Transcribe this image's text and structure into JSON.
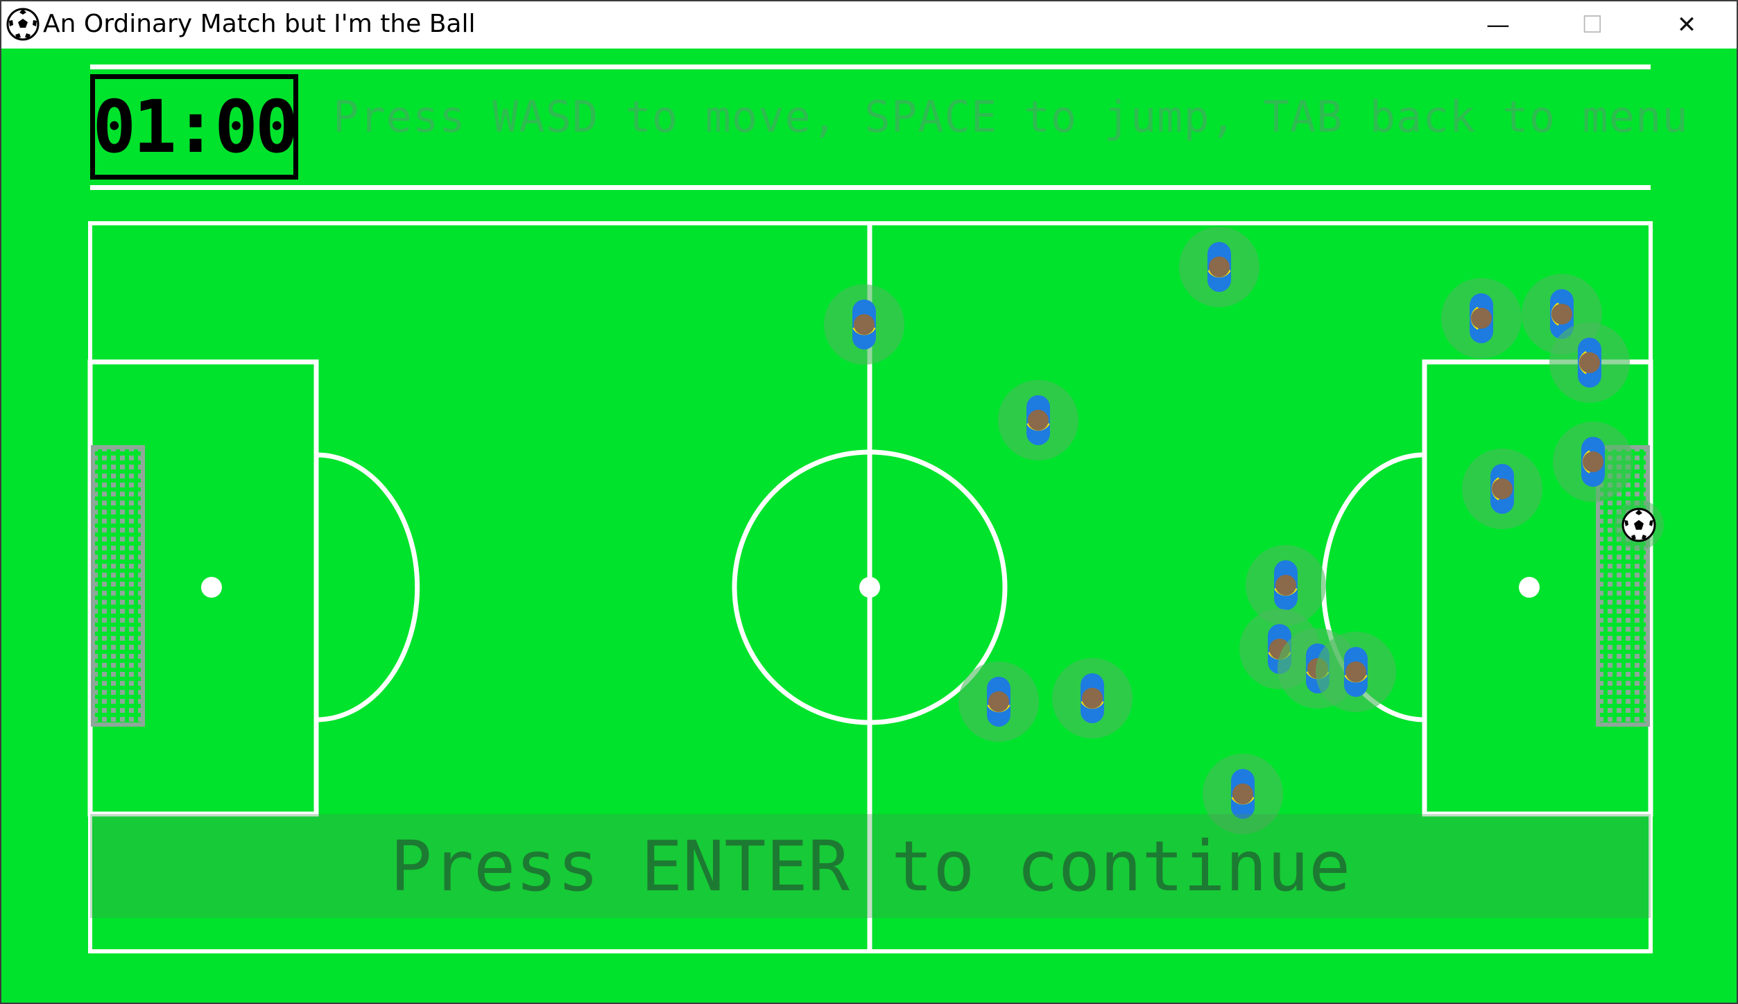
{
  "window": {
    "title": "An Ordinary Match but I'm the Ball",
    "app_icon": "soccer-ball-icon",
    "controls": {
      "minimize": "—",
      "maximize": "☐",
      "close": "✕"
    }
  },
  "hud": {
    "timer": "01:00",
    "instructions": "Press WASD to move, SPACE to jump, TAB back to menu"
  },
  "overlay": {
    "prompt": "Press ENTER to continue"
  },
  "colors": {
    "pitch": "#00e32c",
    "lines": "#ffffff",
    "player_body": "#1e7be0",
    "player_head": "#8a6a4a",
    "player_smile": "#f5e60a",
    "player_aura": "#4cba5e",
    "text_hint": "#4ba567",
    "text_prompt": "#1d7a32"
  },
  "entities": {
    "player_count": 15,
    "player_icon": "player-icon",
    "ball_icon": "soccer-ball-icon"
  }
}
